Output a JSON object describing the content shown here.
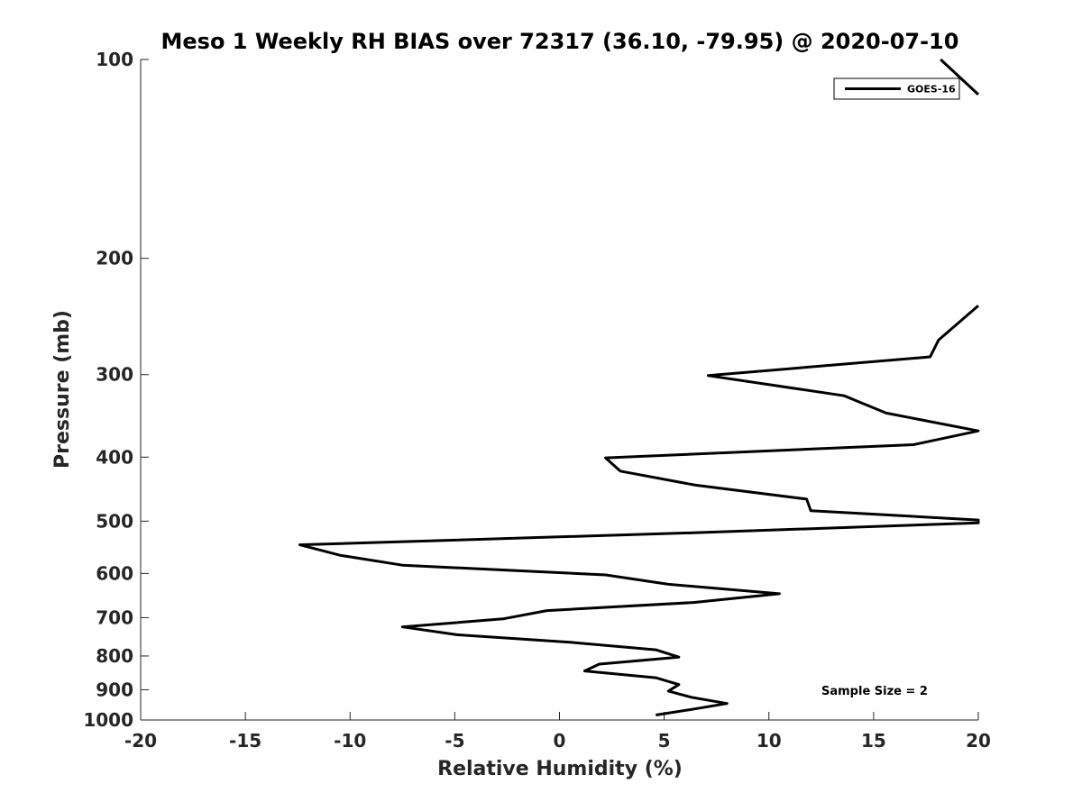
{
  "chart_data": {
    "type": "line",
    "title": "Meso 1 Weekly RH BIAS over 72317 (36.10, -79.95) @ 2020-07-10",
    "xlabel": "Relative Humidity (%)",
    "ylabel": "Pressure (mb)",
    "xlim": [
      -20,
      20
    ],
    "ylim": [
      100,
      1000
    ],
    "y_scale": "log",
    "y_reversed": true,
    "x_ticks": [
      -20,
      -15,
      -10,
      -5,
      0,
      5,
      10,
      15,
      20
    ],
    "x_tick_labels": [
      "-20",
      "-15",
      "-10",
      "-5",
      "0",
      "5",
      "10",
      "15",
      "20"
    ],
    "y_ticks": [
      100,
      200,
      300,
      400,
      500,
      600,
      700,
      800,
      900,
      1000
    ],
    "y_tick_labels": [
      "100",
      "200",
      "300",
      "400",
      "500",
      "600",
      "700",
      "800",
      "900",
      "1000"
    ],
    "grid": false,
    "legend_position": "top-right",
    "line_color": "#000000",
    "series": [
      {
        "name": "GOES-16",
        "segments": [
          [
            {
              "x": 18.2,
              "y": 100
            },
            {
              "x": 20.0,
              "y": 113
            }
          ],
          [
            {
              "x": 20.0,
              "y": 236
            },
            {
              "x": 19.4,
              "y": 245
            },
            {
              "x": 18.1,
              "y": 266
            },
            {
              "x": 17.7,
              "y": 282
            },
            {
              "x": 7.1,
              "y": 301
            },
            {
              "x": 13.6,
              "y": 323
            },
            {
              "x": 15.6,
              "y": 343
            },
            {
              "x": 20.0,
              "y": 365
            },
            {
              "x": 16.9,
              "y": 383
            },
            {
              "x": 2.2,
              "y": 401
            },
            {
              "x": 2.9,
              "y": 420
            },
            {
              "x": 6.5,
              "y": 441
            },
            {
              "x": 11.8,
              "y": 463
            },
            {
              "x": 12.0,
              "y": 482
            },
            {
              "x": 20.0,
              "y": 498
            },
            {
              "x": 20.0,
              "y": 503
            },
            {
              "x": 7.0,
              "y": 520
            },
            {
              "x": -12.4,
              "y": 543
            },
            {
              "x": -10.5,
              "y": 563
            },
            {
              "x": -7.5,
              "y": 583
            },
            {
              "x": 2.2,
              "y": 603
            },
            {
              "x": 5.2,
              "y": 623
            },
            {
              "x": 10.5,
              "y": 644
            },
            {
              "x": 6.4,
              "y": 664
            },
            {
              "x": -0.6,
              "y": 683
            },
            {
              "x": -2.7,
              "y": 703
            },
            {
              "x": -7.5,
              "y": 723
            },
            {
              "x": -4.9,
              "y": 743
            },
            {
              "x": 0.6,
              "y": 763
            },
            {
              "x": 4.6,
              "y": 783
            },
            {
              "x": 5.7,
              "y": 803
            },
            {
              "x": 1.9,
              "y": 823
            },
            {
              "x": 1.2,
              "y": 843
            },
            {
              "x": 4.6,
              "y": 863
            },
            {
              "x": 5.7,
              "y": 884
            },
            {
              "x": 5.2,
              "y": 904
            },
            {
              "x": 6.3,
              "y": 924
            },
            {
              "x": 8.0,
              "y": 944
            },
            {
              "x": 6.3,
              "y": 964
            },
            {
              "x": 4.6,
              "y": 983
            }
          ]
        ]
      }
    ],
    "legend_label": "GOES-16",
    "annotation": "Sample Size = 2"
  }
}
